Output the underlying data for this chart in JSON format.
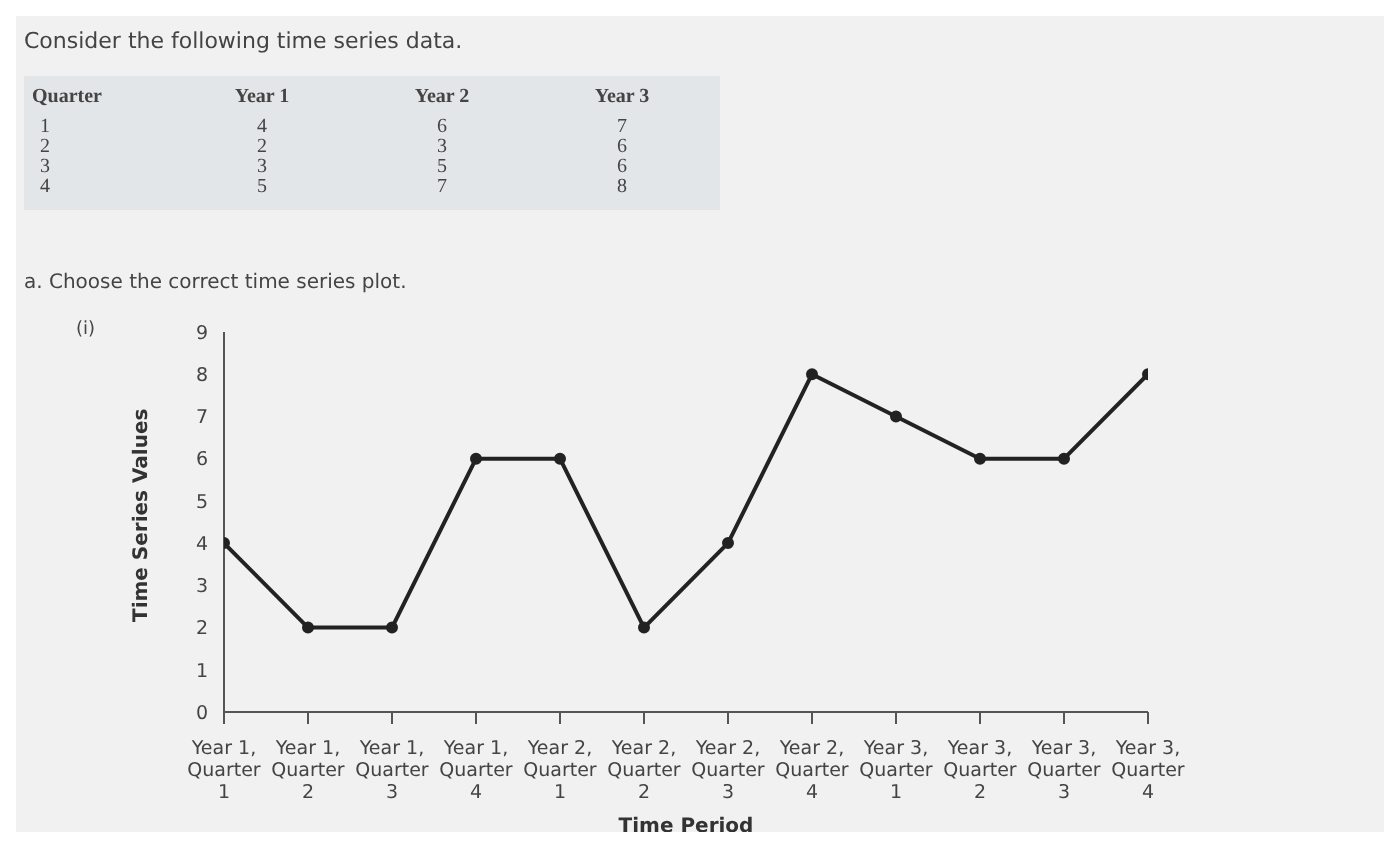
{
  "chart_data": {
    "type": "line",
    "title": "Consider the following time series data.",
    "annotations": [
      "Quarter",
      "Year 1",
      "Year 2",
      "Year 3",
      "1",
      "4",
      "6",
      "7",
      "2",
      "2",
      "3",
      "6",
      "3",
      "3",
      "5",
      "6",
      "4",
      "5",
      "7",
      "8",
      "a. Choose the correct time series plot.",
      "(i)"
    ],
    "xlabel": "Time Period",
    "ylabel": "Time Series Values",
    "categories": [
      "Year 1, Quarter 1",
      "Year 1, Quarter 2",
      "Year 1, Quarter 3",
      "Year 1, Quarter 4",
      "Year 2, Quarter 1",
      "Year 2, Quarter 2",
      "Year 2, Quarter 3",
      "Year 2, Quarter 4",
      "Year 3, Quarter 1",
      "Year 3, Quarter 2",
      "Year 3, Quarter 3",
      "Year 3, Quarter 4"
    ],
    "series": [
      {
        "color": "#222222",
        "values": [
          4,
          2,
          2,
          6,
          6,
          2,
          4,
          8,
          7,
          6,
          6,
          8
        ]
      }
    ],
    "ylim": [
      0,
      9
    ],
    "yticks": [
      0,
      1,
      2,
      3,
      4,
      5,
      6,
      7,
      8,
      9
    ],
    "grid": false,
    "legend": false,
    "marker": "circle",
    "line_style": "solid"
  }
}
